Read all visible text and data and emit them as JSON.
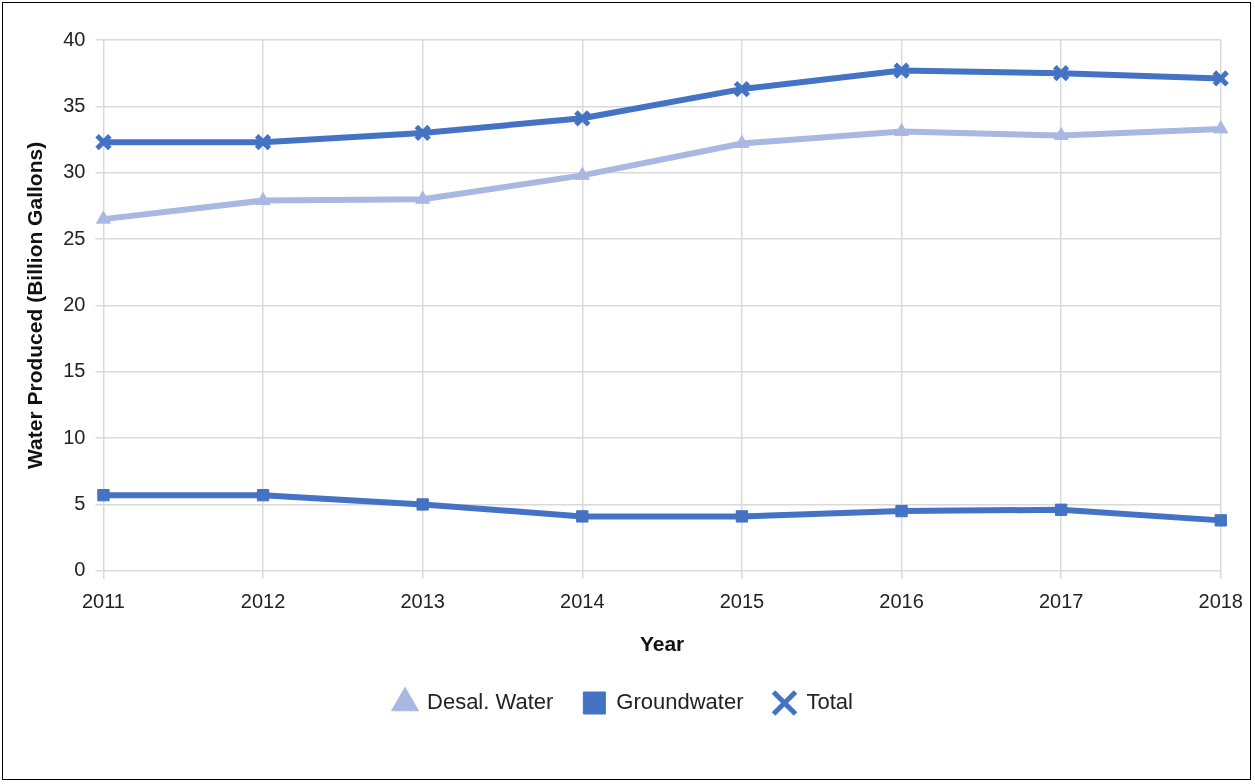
{
  "chart_data": {
    "type": "line",
    "xlabel": "Year",
    "ylabel": "Water Produced (Billion Gallons)",
    "categories": [
      "2011",
      "2012",
      "2013",
      "2014",
      "2015",
      "2016",
      "2017",
      "2018"
    ],
    "series": [
      {
        "name": "Desal. Water",
        "color": "#a9b8e2",
        "marker": "triangle",
        "values": [
          26.5,
          27.9,
          28.0,
          29.8,
          32.2,
          33.1,
          32.8,
          33.3
        ]
      },
      {
        "name": "Groundwater",
        "color": "#4472c4",
        "marker": "square",
        "values": [
          5.7,
          5.7,
          5.0,
          4.1,
          4.1,
          4.5,
          4.6,
          3.8
        ]
      },
      {
        "name": "Total",
        "color": "#4472c4",
        "marker": "cross",
        "values": [
          32.3,
          32.3,
          33.0,
          34.1,
          36.3,
          37.7,
          37.5,
          37.1
        ]
      }
    ],
    "ylim": [
      0,
      40
    ],
    "yticks": [
      0,
      5,
      10,
      15,
      20,
      25,
      30,
      35,
      40
    ],
    "grid": true,
    "legend": "bottom",
    "line_style": "solid"
  }
}
